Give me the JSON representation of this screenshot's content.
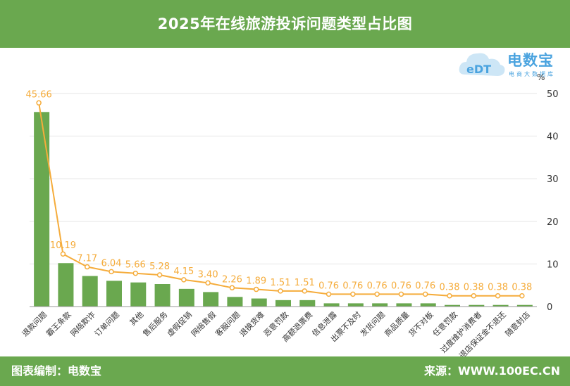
{
  "header": {
    "title": "2025年在线旅游投诉问题类型占比图"
  },
  "logo": {
    "brand": "电数宝",
    "sub": "电商大数据库",
    "mark": "eDT"
  },
  "footer": {
    "left": "图表编制：电数宝",
    "right": "来源：WWW.100EC.CN"
  },
  "colors": {
    "header": "#6aa84f",
    "bar": "#6aa84f",
    "line": "#f5ac3b",
    "label": "#f5ac3b"
  },
  "chart_data": {
    "type": "bar",
    "categories": [
      "退款问题",
      "霸王条款",
      "网络欺诈",
      "订单问题",
      "其他",
      "售后服务",
      "虚假促销",
      "网络售假",
      "客服问题",
      "退换货难",
      "恶意罚款",
      "高额退票费",
      "信息泄露",
      "出票不及时",
      "发货问题",
      "商品质量",
      "货不对板",
      "任意罚款",
      "过度维护消费者",
      "退店保证金不退还",
      "随意封店"
    ],
    "values": [
      45.66,
      10.19,
      7.17,
      6.04,
      5.66,
      5.28,
      4.15,
      3.4,
      2.26,
      1.89,
      1.51,
      1.51,
      0.76,
      0.76,
      0.76,
      0.76,
      0.76,
      0.38,
      0.38,
      0.38,
      0.38
    ],
    "value_labels": [
      "45.66",
      "10.19",
      "7.17",
      "6.04",
      "5.66",
      "5.28",
      "4.15",
      "3.40",
      "2.26",
      "1.89",
      "1.51",
      "1.51",
      "0.76",
      "0.76",
      "0.76",
      "0.76",
      "0.76",
      "0.38",
      "0.38",
      "0.38",
      "0.38"
    ],
    "y_unit": "%",
    "ylim": [
      0,
      50
    ],
    "yticks": [
      "0",
      "10",
      "20",
      "30",
      "40",
      "50"
    ],
    "y_axis_position": "right",
    "grid": true,
    "overlay": "line"
  }
}
